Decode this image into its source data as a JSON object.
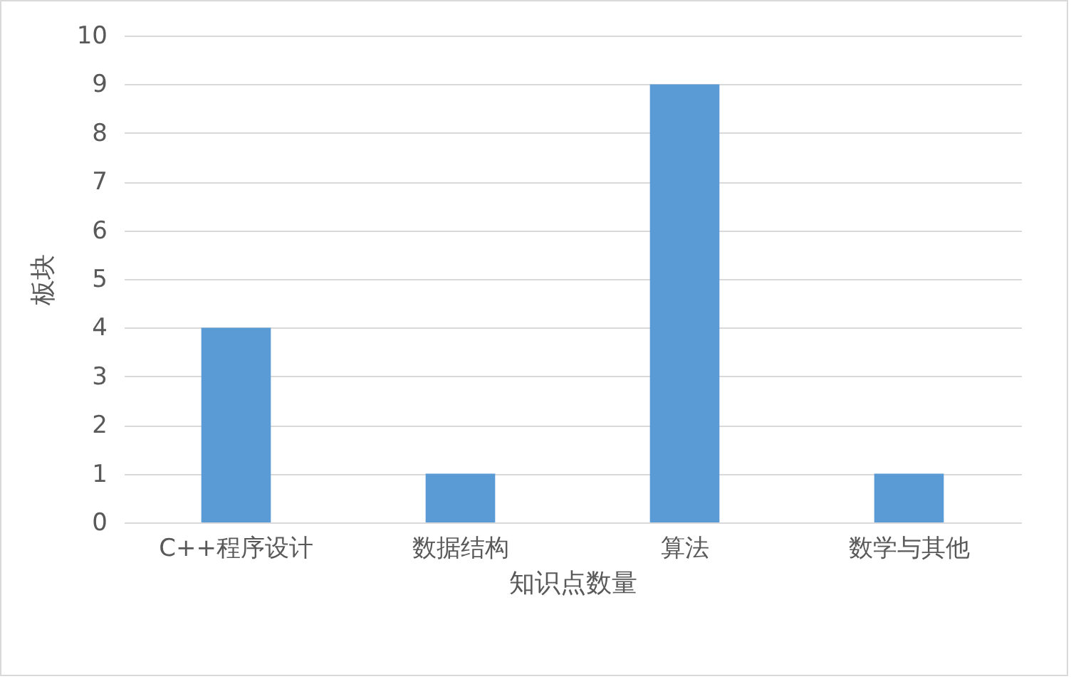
{
  "chart_data": {
    "type": "bar",
    "categories": [
      "C++程序设计",
      "数据结构",
      "算法",
      "数学与其他"
    ],
    "values": [
      4,
      1,
      9,
      1
    ],
    "color": "#5b9bd5",
    "xlabel": "知识点数量",
    "ylabel": "板块",
    "ylim": [
      0,
      10
    ],
    "yticks": [
      0,
      1,
      2,
      3,
      4,
      5,
      6,
      7,
      8,
      9,
      10
    ],
    "grid": "y"
  }
}
